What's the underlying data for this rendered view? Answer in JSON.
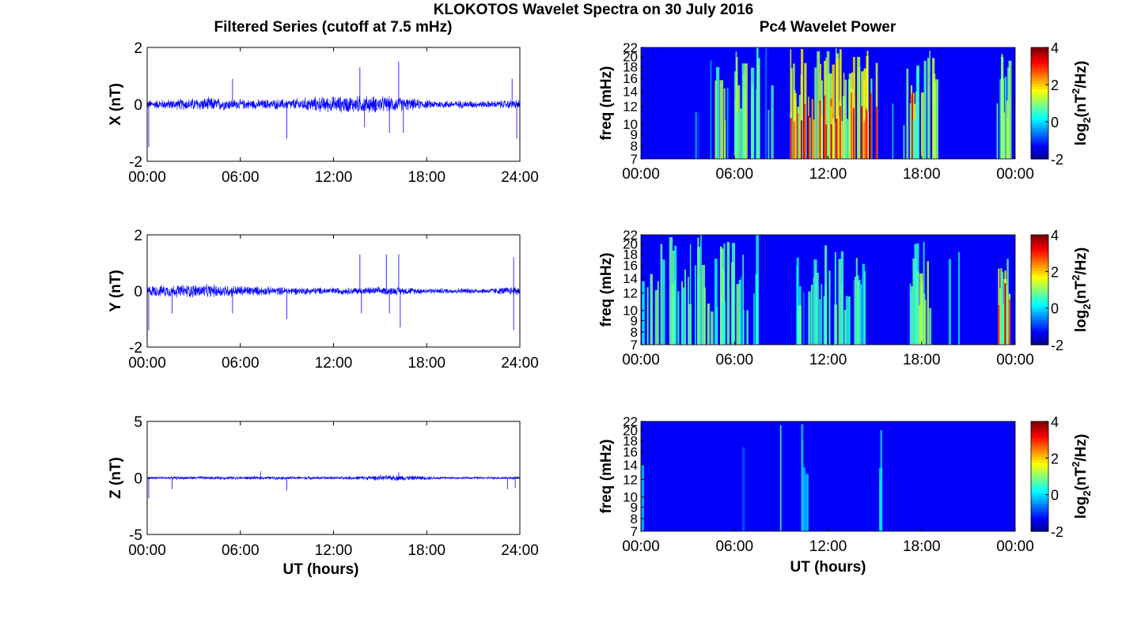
{
  "figure": {
    "title": "KLOKOTOS Wavelet Spectra on 30 July 2016",
    "left_column_title": "Filtered Series (cutoff at 7.5 mHz)",
    "right_column_title": "Pc4 Wavelet Power"
  },
  "chart_data": [
    {
      "type": "line",
      "panel": "X",
      "ylabel": "X (nT)",
      "xlabel": "",
      "xlim": [
        0,
        24
      ],
      "ylim": [
        -2,
        2
      ],
      "yticks": [
        "2",
        "0",
        "-2"
      ],
      "xticks": [
        "00:00",
        "06:00",
        "12:00",
        "18:00",
        "24:00"
      ],
      "series_color": "#0000ff",
      "envelope": [
        {
          "t": 0,
          "amp": 0.12
        },
        {
          "t": 2,
          "amp": 0.16
        },
        {
          "t": 4,
          "amp": 0.2
        },
        {
          "t": 6,
          "amp": 0.14
        },
        {
          "t": 9,
          "amp": 0.15
        },
        {
          "t": 11,
          "amp": 0.22
        },
        {
          "t": 14,
          "amp": 0.25
        },
        {
          "t": 16,
          "amp": 0.22
        },
        {
          "t": 18,
          "amp": 0.12
        },
        {
          "t": 22,
          "amp": 0.1
        },
        {
          "t": 24,
          "amp": 0.14
        }
      ],
      "spikes": [
        {
          "t": 0.1,
          "v": -1.5
        },
        {
          "t": 5.5,
          "v": 0.9
        },
        {
          "t": 9.0,
          "v": -1.2
        },
        {
          "t": 13.7,
          "v": 1.3
        },
        {
          "t": 14.0,
          "v": -0.8
        },
        {
          "t": 15.6,
          "v": -1.0
        },
        {
          "t": 16.2,
          "v": 1.5
        },
        {
          "t": 16.5,
          "v": -1.0
        },
        {
          "t": 23.5,
          "v": 0.9
        },
        {
          "t": 23.8,
          "v": -1.2
        }
      ]
    },
    {
      "type": "line",
      "panel": "Y",
      "ylabel": "Y (nT)",
      "xlabel": "",
      "xlim": [
        0,
        24
      ],
      "ylim": [
        -2,
        2
      ],
      "yticks": [
        "2",
        "0",
        "-2"
      ],
      "xticks": [
        "00:00",
        "06:00",
        "12:00",
        "18:00",
        "24:00"
      ],
      "series_color": "#0000ff",
      "envelope": [
        {
          "t": 0,
          "amp": 0.16
        },
        {
          "t": 3,
          "amp": 0.2
        },
        {
          "t": 5,
          "amp": 0.18
        },
        {
          "t": 8,
          "amp": 0.12
        },
        {
          "t": 12,
          "amp": 0.1
        },
        {
          "t": 16,
          "amp": 0.12
        },
        {
          "t": 18,
          "amp": 0.08
        },
        {
          "t": 22,
          "amp": 0.08
        },
        {
          "t": 24,
          "amp": 0.15
        }
      ],
      "spikes": [
        {
          "t": 0.1,
          "v": -1.4
        },
        {
          "t": 1.6,
          "v": -0.8
        },
        {
          "t": 5.5,
          "v": -0.8
        },
        {
          "t": 9.0,
          "v": -1.0
        },
        {
          "t": 13.7,
          "v": 1.3
        },
        {
          "t": 13.8,
          "v": -0.8
        },
        {
          "t": 15.4,
          "v": 1.3
        },
        {
          "t": 15.6,
          "v": -0.8
        },
        {
          "t": 16.2,
          "v": 1.3
        },
        {
          "t": 16.3,
          "v": -1.3
        },
        {
          "t": 23.6,
          "v": 1.2
        },
        {
          "t": 23.6,
          "v": -1.4
        }
      ]
    },
    {
      "type": "line",
      "panel": "Z",
      "ylabel": "Z (nT)",
      "xlabel": "UT (hours)",
      "xlim": [
        0,
        24
      ],
      "ylim": [
        -5,
        5
      ],
      "yticks": [
        "5",
        "0",
        "-5"
      ],
      "xticks": [
        "00:00",
        "06:00",
        "12:00",
        "18:00",
        "24:00"
      ],
      "series_color": "#0000ff",
      "envelope": [
        {
          "t": 0,
          "amp": 0.1
        },
        {
          "t": 6,
          "amp": 0.12
        },
        {
          "t": 12,
          "amp": 0.1
        },
        {
          "t": 16,
          "amp": 0.2
        },
        {
          "t": 20,
          "amp": 0.08
        },
        {
          "t": 24,
          "amp": 0.1
        }
      ],
      "spikes": [
        {
          "t": 0.1,
          "v": -1.8
        },
        {
          "t": 1.6,
          "v": -1.0
        },
        {
          "t": 7.3,
          "v": 0.6
        },
        {
          "t": 9.0,
          "v": -1.1
        },
        {
          "t": 16.2,
          "v": 0.5
        },
        {
          "t": 23.2,
          "v": -1.0
        },
        {
          "t": 23.7,
          "v": -0.9
        }
      ]
    },
    {
      "type": "heatmap",
      "panel": "X",
      "ylabel": "freq (mHz)",
      "xlabel": "",
      "xlim": [
        0,
        24
      ],
      "ylim": [
        7,
        22
      ],
      "yticks": [
        "22",
        "20",
        "18",
        "16",
        "14",
        "12",
        "10",
        "9",
        "8",
        "7"
      ],
      "xticks": [
        "00:00",
        "06:00",
        "12:00",
        "18:00",
        "00:00"
      ],
      "colorbar": {
        "label_base": "log",
        "label_sub": "2",
        "label_main": "(nT",
        "label_sup": "2",
        "label_tail": "/Hz)",
        "ticks": [
          "4",
          "2",
          "0",
          "-2"
        ],
        "range": [
          -2,
          4
        ]
      },
      "colormap": "jet",
      "active_periods": [
        {
          "start": 4.5,
          "end": 7.5,
          "level": 0.55
        },
        {
          "start": 9.5,
          "end": 15.2,
          "level": 0.75
        },
        {
          "start": 16.8,
          "end": 19.0,
          "level": 0.6
        },
        {
          "start": 22.8,
          "end": 23.7,
          "level": 0.65
        }
      ],
      "background_level": 0.25
    },
    {
      "type": "heatmap",
      "panel": "Y",
      "ylabel": "freq (mHz)",
      "xlabel": "",
      "xlim": [
        0,
        24
      ],
      "ylim": [
        7,
        22
      ],
      "yticks": [
        "22",
        "20",
        "18",
        "16",
        "14",
        "12",
        "10",
        "9",
        "8",
        "7"
      ],
      "xticks": [
        "00:00",
        "06:00",
        "12:00",
        "18:00",
        "00:00"
      ],
      "colorbar": {
        "label_base": "log",
        "label_sub": "2",
        "label_main": "(nT",
        "label_sup": "2",
        "label_tail": "/Hz)",
        "ticks": [
          "4",
          "2",
          "0",
          "-2"
        ],
        "range": [
          -2,
          4
        ]
      },
      "colormap": "jet",
      "active_periods": [
        {
          "start": 0.0,
          "end": 7.5,
          "level": 0.45
        },
        {
          "start": 9.8,
          "end": 15.5,
          "level": 0.4
        },
        {
          "start": 17.0,
          "end": 18.5,
          "level": 0.55
        },
        {
          "start": 22.8,
          "end": 23.8,
          "level": 0.65
        }
      ],
      "background_level": 0.15
    },
    {
      "type": "heatmap",
      "panel": "Z",
      "ylabel": "freq (mHz)",
      "xlabel": "UT (hours)",
      "xlim": [
        0,
        24
      ],
      "ylim": [
        7,
        22
      ],
      "yticks": [
        "22",
        "20",
        "18",
        "16",
        "14",
        "12",
        "10",
        "9",
        "8",
        "7"
      ],
      "xticks": [
        "00:00",
        "06:00",
        "12:00",
        "18:00",
        "00:00"
      ],
      "colorbar": {
        "label_base": "log",
        "label_sub": "2",
        "label_main": "(nT",
        "label_sup": "2",
        "label_tail": "/Hz)",
        "ticks": [
          "4",
          "2",
          "0",
          "-2"
        ],
        "range": [
          -2,
          4
        ]
      },
      "colormap": "jet",
      "active_periods": [
        {
          "start": 10.0,
          "end": 10.6,
          "level": 0.2
        },
        {
          "start": 15.2,
          "end": 15.4,
          "level": 0.2
        }
      ],
      "background_level": 0.05
    }
  ]
}
